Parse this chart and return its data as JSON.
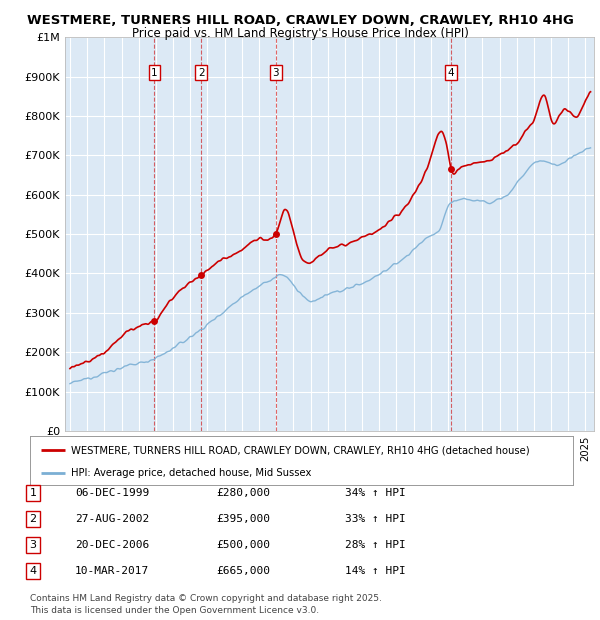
{
  "title_line1": "WESTMERE, TURNERS HILL ROAD, CRAWLEY DOWN, CRAWLEY, RH10 4HG",
  "title_line2": "Price paid vs. HM Land Registry's House Price Index (HPI)",
  "ylabel_ticks": [
    "£0",
    "£100K",
    "£200K",
    "£300K",
    "£400K",
    "£500K",
    "£600K",
    "£700K",
    "£800K",
    "£900K",
    "£1M"
  ],
  "ylim": [
    0,
    1000000
  ],
  "xlim_start": 1994.7,
  "xlim_end": 2025.5,
  "background_color": "#dce9f5",
  "red_line_color": "#cc0000",
  "blue_line_color": "#7bafd4",
  "sale_dates": [
    1999.92,
    2002.65,
    2006.97,
    2017.19
  ],
  "sale_prices": [
    280000,
    395000,
    500000,
    665000
  ],
  "sale_labels": [
    "1",
    "2",
    "3",
    "4"
  ],
  "legend_line1": "WESTMERE, TURNERS HILL ROAD, CRAWLEY DOWN, CRAWLEY, RH10 4HG (detached house)",
  "legend_line2": "HPI: Average price, detached house, Mid Sussex",
  "table_data": [
    [
      "1",
      "06-DEC-1999",
      "£280,000",
      "34% ↑ HPI"
    ],
    [
      "2",
      "27-AUG-2002",
      "£395,000",
      "33% ↑ HPI"
    ],
    [
      "3",
      "20-DEC-2006",
      "£500,000",
      "28% ↑ HPI"
    ],
    [
      "4",
      "10-MAR-2017",
      "£665,000",
      "14% ↑ HPI"
    ]
  ],
  "footer": "Contains HM Land Registry data © Crown copyright and database right 2025.\nThis data is licensed under the Open Government Licence v3.0.",
  "grid_color": "#ffffff",
  "fig_bg": "#f0f4f8"
}
